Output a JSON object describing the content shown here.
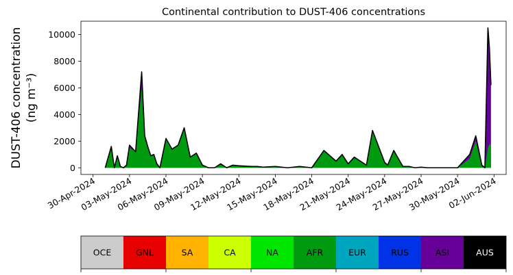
{
  "chart_data": {
    "type": "area",
    "title": "Continental contribution to DUST-406 concentrations",
    "ylabel_line1": "DUST-406 concentration",
    "ylabel_line2": "(ng m⁻³)",
    "xlabel": "",
    "ylim": [
      -500,
      11000
    ],
    "yticks": [
      0,
      2000,
      4000,
      6000,
      8000,
      10000
    ],
    "x_start": "2024-04-29",
    "x_end": "2024-06-03",
    "xtick_labels": [
      "30-Apr-2024",
      "03-May-2024",
      "06-May-2024",
      "09-May-2024",
      "12-May-2024",
      "15-May-2024",
      "18-May-2024",
      "21-May-2024",
      "24-May-2024",
      "27-May-2024",
      "30-May-2024",
      "02-Jun-2024"
    ],
    "grid": false,
    "series": [
      {
        "name": "AFR",
        "color": "#009a10"
      },
      {
        "name": "ASI",
        "color": "#660099"
      }
    ],
    "x": [
      "2024-05-01",
      "2024-05-01T12:00",
      "2024-05-01T18:00",
      "2024-05-02",
      "2024-05-02T06:00",
      "2024-05-02T12:00",
      "2024-05-02T18:00",
      "2024-05-03",
      "2024-05-03T12:00",
      "2024-05-04",
      "2024-05-04T06:00",
      "2024-05-04T12:00",
      "2024-05-04T18:00",
      "2024-05-05",
      "2024-05-05T06:00",
      "2024-05-05T12:00",
      "2024-05-06",
      "2024-05-06T12:00",
      "2024-05-07",
      "2024-05-07T12:00",
      "2024-05-08",
      "2024-05-08T12:00",
      "2024-05-09",
      "2024-05-09T12:00",
      "2024-05-10",
      "2024-05-10T12:00",
      "2024-05-11",
      "2024-05-11T12:00",
      "2024-05-12",
      "2024-05-13",
      "2024-05-13T12:00",
      "2024-05-14",
      "2024-05-15",
      "2024-05-16",
      "2024-05-17",
      "2024-05-18",
      "2024-05-19",
      "2024-05-20",
      "2024-05-20T12:00",
      "2024-05-21",
      "2024-05-21T12:00",
      "2024-05-22",
      "2024-05-22T12:00",
      "2024-05-23",
      "2024-05-23T12:00",
      "2024-05-24",
      "2024-05-24T06:00",
      "2024-05-24T18:00",
      "2024-05-25",
      "2024-05-25T12:00",
      "2024-05-26",
      "2024-05-26T12:00",
      "2024-05-27",
      "2024-05-27T12:00",
      "2024-05-28",
      "2024-05-29",
      "2024-05-30",
      "2024-05-31",
      "2024-05-31T12:00",
      "2024-06-01",
      "2024-06-01T06:00",
      "2024-06-01T12:00",
      "2024-06-01T15:00",
      "2024-06-01T18:00"
    ],
    "values_total": [
      0,
      1600,
      0,
      900,
      100,
      0,
      200,
      1700,
      1200,
      7200,
      2400,
      1600,
      900,
      1000,
      300,
      0,
      2200,
      1400,
      1700,
      3000,
      800,
      1100,
      200,
      0,
      0,
      300,
      0,
      200,
      150,
      100,
      100,
      50,
      100,
      0,
      100,
      0,
      1300,
      500,
      1000,
      300,
      800,
      500,
      200,
      2800,
      1600,
      400,
      200,
      1300,
      900,
      100,
      100,
      0,
      50,
      0,
      0,
      0,
      0,
      1000,
      2400,
      200,
      0,
      10500,
      9000,
      6200
    ],
    "values_afr": [
      0,
      1600,
      0,
      900,
      100,
      0,
      200,
      1500,
      1200,
      6000,
      2400,
      1600,
      900,
      1000,
      300,
      0,
      2200,
      1400,
      1700,
      2900,
      800,
      1100,
      200,
      0,
      0,
      300,
      0,
      200,
      150,
      100,
      100,
      50,
      100,
      0,
      100,
      0,
      1300,
      500,
      1000,
      300,
      800,
      500,
      200,
      2800,
      1600,
      400,
      200,
      1300,
      900,
      100,
      100,
      0,
      50,
      0,
      0,
      0,
      0,
      700,
      2000,
      100,
      0,
      1500,
      1800,
      1700
    ]
  },
  "legend": {
    "items": [
      {
        "label": "OCE",
        "color": "#cccccc",
        "text_color": "#000000"
      },
      {
        "label": "GNL",
        "color": "#e60000",
        "text_color": "#000000"
      },
      {
        "label": "SA",
        "color": "#ffb300",
        "text_color": "#000000"
      },
      {
        "label": "CA",
        "color": "#ccff00",
        "text_color": "#000000"
      },
      {
        "label": "NA",
        "color": "#00e600",
        "text_color": "#000000"
      },
      {
        "label": "AFR",
        "color": "#009a10",
        "text_color": "#000000"
      },
      {
        "label": "EUR",
        "color": "#00a6bf",
        "text_color": "#000000"
      },
      {
        "label": "RUS",
        "color": "#0033e6",
        "text_color": "#000000"
      },
      {
        "label": "ASI",
        "color": "#660099",
        "text_color": "#000000"
      },
      {
        "label": "AUS",
        "color": "#000000",
        "text_color": "#ffffff"
      }
    ]
  }
}
